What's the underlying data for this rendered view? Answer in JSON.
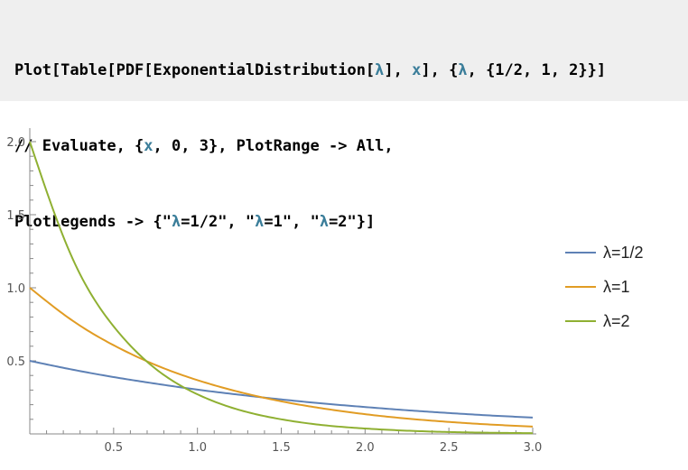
{
  "input_cell": {
    "lines": [
      [
        {
          "t": "Plot[Table[PDF[ExponentialDistribution[",
          "c": "plain"
        },
        {
          "t": "λ",
          "c": "var"
        },
        {
          "t": "], ",
          "c": "plain"
        },
        {
          "t": "x",
          "c": "var"
        },
        {
          "t": "], {",
          "c": "plain"
        },
        {
          "t": "λ",
          "c": "var"
        },
        {
          "t": ", {1/2, 1, 2}}]",
          "c": "plain"
        }
      ],
      [
        {
          "t": "// Evaluate, {",
          "c": "plain"
        },
        {
          "t": "x",
          "c": "var"
        },
        {
          "t": ", 0, 3}, PlotRange -> All,",
          "c": "plain"
        }
      ],
      [
        {
          "t": "PlotLegends -> {\"",
          "c": "plain"
        },
        {
          "t": "λ",
          "c": "var"
        },
        {
          "t": "=1/2\", \"",
          "c": "plain"
        },
        {
          "t": "λ",
          "c": "var"
        },
        {
          "t": "=1\", \"",
          "c": "plain"
        },
        {
          "t": "λ",
          "c": "var"
        },
        {
          "t": "=2\"}]",
          "c": "plain"
        }
      ]
    ]
  },
  "chart_data": {
    "type": "line",
    "title": "",
    "xlabel": "",
    "ylabel": "",
    "xlim": [
      0,
      3
    ],
    "ylim": [
      0,
      2
    ],
    "x_ticks": [
      "0.5",
      "1.0",
      "1.5",
      "2.0",
      "2.5",
      "3.0"
    ],
    "y_ticks": [
      "0.5",
      "1.0",
      "1.5",
      "2.0"
    ],
    "grid": false,
    "legend_position": "right",
    "x": [
      0,
      0.25,
      0.5,
      0.75,
      1.0,
      1.25,
      1.5,
      1.75,
      2.0,
      2.25,
      2.5,
      2.75,
      3.0
    ],
    "series": [
      {
        "name": "λ=1/2",
        "color": "#5e81b5",
        "values": [
          0.5,
          0.441,
          0.389,
          0.344,
          0.303,
          0.268,
          0.236,
          0.208,
          0.184,
          0.162,
          0.143,
          0.126,
          0.112
        ]
      },
      {
        "name": "λ=1",
        "color": "#e19c24",
        "values": [
          1.0,
          0.779,
          0.607,
          0.472,
          0.368,
          0.287,
          0.223,
          0.174,
          0.135,
          0.105,
          0.082,
          0.064,
          0.05
        ]
      },
      {
        "name": "λ=2",
        "color": "#8fb032",
        "values": [
          2.0,
          1.213,
          0.736,
          0.446,
          0.271,
          0.164,
          0.1,
          0.06,
          0.037,
          0.022,
          0.013,
          0.008,
          0.005
        ]
      }
    ]
  }
}
